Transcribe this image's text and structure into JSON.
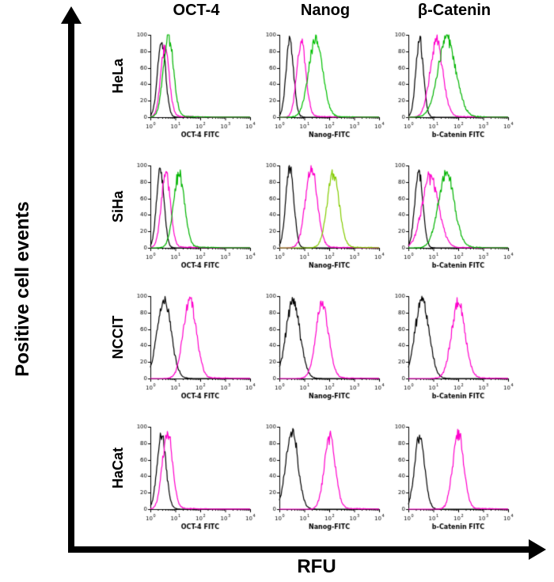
{
  "figure": {
    "y_axis_label": "Positive cell events",
    "x_axis_label": "RFU",
    "column_headers": [
      "OCT-4",
      "Nanog",
      "β-Catenin"
    ],
    "row_labels": [
      "HeLa",
      "SiHa",
      "NCCIT",
      "HaCat"
    ]
  },
  "chart_data": {
    "type": "line",
    "subtype": "flow-cytometry-histogram-overlay-grid",
    "title": "",
    "xlabel": "RFU",
    "ylabel": "Positive cell events",
    "x_scale": "log10",
    "x_range": [
      1,
      10000
    ],
    "x_tick_exponents": [
      0,
      1,
      2,
      3,
      4
    ],
    "y_range": [
      0,
      100
    ],
    "y_ticks": [
      0,
      20,
      40,
      60,
      80,
      100
    ],
    "grid": "off",
    "legend": "none",
    "columns": [
      "OCT-4",
      "Nanog",
      "β-Catenin"
    ],
    "rows": [
      "HeLa",
      "SiHa",
      "NCCIT",
      "HaCat"
    ],
    "panels": [
      {
        "row": "HeLa",
        "col": "OCT-4",
        "xlabel": "OCT-4 FITC",
        "curves": [
          {
            "name": "black-trace",
            "color": "#000000",
            "peak": 0.45,
            "height": 92,
            "width": 0.16
          },
          {
            "name": "magenta-trace",
            "color": "#ff00cc",
            "peak": 0.58,
            "height": 85,
            "width": 0.17,
            "tail": true
          },
          {
            "name": "green-trace",
            "color": "#00b400",
            "peak": 0.72,
            "height": 98,
            "width": 0.2,
            "tail": true
          }
        ]
      },
      {
        "row": "HeLa",
        "col": "Nanog",
        "xlabel": "Nanog-FITC",
        "curves": [
          {
            "name": "black-trace",
            "color": "#000000",
            "peak": 0.42,
            "height": 96,
            "width": 0.15
          },
          {
            "name": "magenta-trace",
            "color": "#ff00cc",
            "peak": 0.88,
            "height": 94,
            "width": 0.18,
            "tail": true
          },
          {
            "name": "green-trace",
            "color": "#00c000",
            "peak": 1.45,
            "height": 94,
            "width": 0.28,
            "tail": true
          }
        ]
      },
      {
        "row": "HeLa",
        "col": "β-Catenin",
        "xlabel": "b-Catenin FITC",
        "curves": [
          {
            "name": "black-trace",
            "color": "#000000",
            "peak": 0.45,
            "height": 94,
            "width": 0.15
          },
          {
            "name": "magenta-trace",
            "color": "#ff00cc",
            "peak": 1.12,
            "height": 90,
            "width": 0.26,
            "tail": true
          },
          {
            "name": "green-trace",
            "color": "#00b400",
            "peak": 1.55,
            "height": 94,
            "width": 0.36,
            "tail": true
          }
        ]
      },
      {
        "row": "SiHa",
        "col": "OCT-4",
        "xlabel": "OCT-4 FITC",
        "curves": [
          {
            "name": "black-trace",
            "color": "#000000",
            "peak": 0.4,
            "height": 94,
            "width": 0.15
          },
          {
            "name": "magenta-trace",
            "color": "#ff00cc",
            "peak": 0.62,
            "height": 90,
            "width": 0.18,
            "tail": true
          },
          {
            "name": "green-trace",
            "color": "#00b400",
            "peak": 1.15,
            "height": 90,
            "width": 0.22,
            "tail": true
          }
        ]
      },
      {
        "row": "SiHa",
        "col": "Nanog",
        "xlabel": "Nanog-FITC",
        "curves": [
          {
            "name": "black-trace",
            "color": "#000000",
            "peak": 0.42,
            "height": 96,
            "width": 0.16
          },
          {
            "name": "magenta-trace",
            "color": "#ff00cc",
            "peak": 1.28,
            "height": 95,
            "width": 0.24,
            "tail": true
          },
          {
            "name": "green-trace",
            "color": "#84cc00",
            "peak": 2.15,
            "height": 90,
            "width": 0.24,
            "tail": true
          }
        ]
      },
      {
        "row": "SiHa",
        "col": "β-Catenin",
        "xlabel": "b-Catenin FITC",
        "curves": [
          {
            "name": "black-trace",
            "color": "#000000",
            "peak": 0.42,
            "height": 93,
            "width": 0.16
          },
          {
            "name": "magenta-trace",
            "color": "#ff00cc",
            "peak": 0.88,
            "height": 86,
            "width": 0.33,
            "tail": true
          },
          {
            "name": "green-trace",
            "color": "#00b400",
            "peak": 1.52,
            "height": 90,
            "width": 0.32,
            "tail": true
          }
        ]
      },
      {
        "row": "NCCIT",
        "col": "OCT-4",
        "xlabel": "OCT-4 FITC",
        "curves": [
          {
            "name": "black-trace",
            "color": "#000000",
            "peak": 0.55,
            "height": 95,
            "width": 0.28
          },
          {
            "name": "magenta-trace",
            "color": "#ff00cc",
            "peak": 1.58,
            "height": 95,
            "width": 0.26,
            "tail": true
          }
        ]
      },
      {
        "row": "NCCIT",
        "col": "Nanog",
        "xlabel": "Nanog-FITC",
        "curves": [
          {
            "name": "black-trace",
            "color": "#000000",
            "peak": 0.55,
            "height": 94,
            "width": 0.28
          },
          {
            "name": "magenta-trace",
            "color": "#ff00cc",
            "peak": 1.72,
            "height": 90,
            "width": 0.25,
            "tail": true
          }
        ]
      },
      {
        "row": "NCCIT",
        "col": "β-Catenin",
        "xlabel": "b-Catenin FITC",
        "curves": [
          {
            "name": "black-trace",
            "color": "#000000",
            "peak": 0.55,
            "height": 96,
            "width": 0.28
          },
          {
            "name": "magenta-trace",
            "color": "#ff00cc",
            "peak": 2.0,
            "height": 91,
            "width": 0.27,
            "tail": true
          }
        ]
      },
      {
        "row": "HaCat",
        "col": "OCT-4",
        "xlabel": "OCT-4 FITC",
        "curves": [
          {
            "name": "black-trace",
            "color": "#000000",
            "peak": 0.45,
            "height": 88,
            "width": 0.18
          },
          {
            "name": "magenta-trace",
            "color": "#ff00cc",
            "peak": 0.68,
            "height": 94,
            "width": 0.2,
            "tail": true
          }
        ]
      },
      {
        "row": "HaCat",
        "col": "Nanog",
        "xlabel": "Nanog-FITC",
        "curves": [
          {
            "name": "black-trace",
            "color": "#000000",
            "peak": 0.5,
            "height": 95,
            "width": 0.24
          },
          {
            "name": "magenta-trace",
            "color": "#ff00cc",
            "peak": 2.02,
            "height": 88,
            "width": 0.22,
            "tail": true
          }
        ]
      },
      {
        "row": "HaCat",
        "col": "β-Catenin",
        "xlabel": "b-Catenin FITC",
        "curves": [
          {
            "name": "black-trace",
            "color": "#000000",
            "peak": 0.45,
            "height": 89,
            "width": 0.2
          },
          {
            "name": "magenta-trace",
            "color": "#ff00cc",
            "peak": 2.0,
            "height": 90,
            "width": 0.22,
            "tail": true
          }
        ]
      }
    ]
  }
}
